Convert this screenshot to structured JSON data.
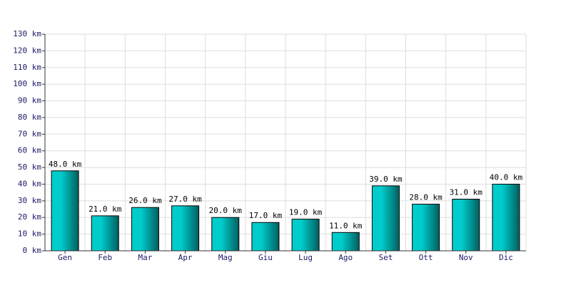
{
  "chart_data": {
    "type": "bar",
    "categories": [
      "Gen",
      "Feb",
      "Mar",
      "Apr",
      "Mag",
      "Giu",
      "Lug",
      "Ago",
      "Set",
      "Ott",
      "Nov",
      "Dic"
    ],
    "values": [
      48,
      21,
      26,
      27,
      20,
      17,
      19,
      11,
      39,
      28,
      31,
      40
    ],
    "value_labels": [
      "48.0 km",
      "21.0 km",
      "26.0 km",
      "27.0 km",
      "20.0 km",
      "17.0 km",
      "19.0 km",
      "11.0 km",
      "39.0 km",
      "28.0 km",
      "31.0 km",
      "40.0 km"
    ],
    "color": "#00cccc",
    "ylim": [
      0,
      130
    ],
    "yticks": [
      {
        "value": 0,
        "label": "0 km"
      },
      {
        "value": 10,
        "label": "10 km"
      },
      {
        "value": 20,
        "label": "20 km"
      },
      {
        "value": 30,
        "label": "30 km"
      },
      {
        "value": 40,
        "label": "40 km"
      },
      {
        "value": 50,
        "label": "50 km"
      },
      {
        "value": 60,
        "label": "60 km"
      },
      {
        "value": 70,
        "label": "70 km"
      },
      {
        "value": 80,
        "label": "80 km"
      },
      {
        "value": 90,
        "label": "90 km"
      },
      {
        "value": 100,
        "label": "100 km"
      },
      {
        "value": 110,
        "label": "110 km"
      },
      {
        "value": 120,
        "label": "120 km"
      },
      {
        "value": 130,
        "label": "130 km"
      }
    ],
    "grid": true
  }
}
